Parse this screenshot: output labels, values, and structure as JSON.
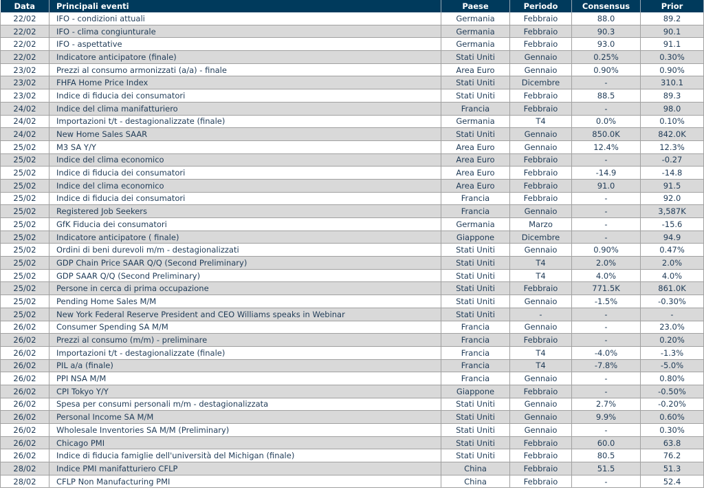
{
  "colors": {
    "header": "#003a5c",
    "alt_row": "#d9d9d9"
  },
  "headers": [
    "Data",
    "Principali eventi",
    "Paese",
    "Periodo",
    "Consensus",
    "Prior"
  ],
  "rows": [
    [
      "22/02",
      "IFO - condizioni attuali",
      "Germania",
      "Febbraio",
      "88.0",
      "89.2"
    ],
    [
      "22/02",
      "IFO - clima congiunturale",
      "Germania",
      "Febbraio",
      "90.3",
      "90.1"
    ],
    [
      "22/02",
      "IFO - aspettative",
      "Germania",
      "Febbraio",
      "93.0",
      "91.1"
    ],
    [
      "22/02",
      "Indicatore anticipatore (finale)",
      "Stati Uniti",
      "Gennaio",
      "0.25%",
      "0.30%"
    ],
    [
      "23/02",
      "Prezzi al consumo armonizzati (a/a) - finale",
      "Area Euro",
      "Gennaio",
      "0.90%",
      "0.90%"
    ],
    [
      "23/02",
      "FHFA Home Price Index",
      "Stati Uniti",
      "Dicembre",
      "-",
      "310.1"
    ],
    [
      "23/02",
      "Indice di fiducia dei consumatori",
      "Stati Uniti",
      "Febbraio",
      "88.5",
      "89.3"
    ],
    [
      "24/02",
      "Indice del clima manifatturiero",
      "Francia",
      "Febbraio",
      "-",
      "98.0"
    ],
    [
      "24/02",
      "Importazioni t/t - destagionalizzate (finale)",
      "Germania",
      "T4",
      "0.0%",
      "0.10%"
    ],
    [
      "24/02",
      "New Home Sales SAAR",
      "Stati Uniti",
      "Gennaio",
      "850.0K",
      "842.0K"
    ],
    [
      "25/02",
      "M3 SA Y/Y",
      "Area Euro",
      "Gennaio",
      "12.4%",
      "12.3%"
    ],
    [
      "25/02",
      "Indice del clima economico",
      "Area Euro",
      "Febbraio",
      "-",
      "-0.27"
    ],
    [
      "25/02",
      "Indice di fiducia dei consumatori",
      "Area Euro",
      "Febbraio",
      "-14.9",
      "-14.8"
    ],
    [
      "25/02",
      "Indice del clima economico",
      "Area Euro",
      "Febbraio",
      "91.0",
      "91.5"
    ],
    [
      "25/02",
      "Indice di fiducia dei consumatori",
      "Francia",
      "Febbraio",
      "-",
      "92.0"
    ],
    [
      "25/02",
      "Registered Job Seekers",
      "Francia",
      "Gennaio",
      "-",
      "3,587K"
    ],
    [
      "25/02",
      "GfK Fiducia dei consumatori",
      "Germania",
      "Marzo",
      "-",
      "-15.6"
    ],
    [
      "25/02",
      "Indicatore anticipatore ( finale)",
      "Giappone",
      "Dicembre",
      "-",
      "94.9"
    ],
    [
      "25/02",
      "Ordini di beni durevoli m/m - destagionalizzati",
      "Stati Uniti",
      "Gennaio",
      "0.90%",
      "0.47%"
    ],
    [
      "25/02",
      "GDP Chain Price SAAR Q/Q (Second Preliminary)",
      "Stati Uniti",
      "T4",
      "2.0%",
      "2.0%"
    ],
    [
      "25/02",
      "GDP SAAR Q/Q (Second Preliminary)",
      "Stati Uniti",
      "T4",
      "4.0%",
      "4.0%"
    ],
    [
      "25/02",
      "Persone in cerca di prima occupazione",
      "Stati Uniti",
      "Febbraio",
      "771.5K",
      "861.0K"
    ],
    [
      "25/02",
      "Pending Home Sales M/M",
      "Stati Uniti",
      "Gennaio",
      "-1.5%",
      "-0.30%"
    ],
    [
      "25/02",
      "New York Federal Reserve President and CEO Williams speaks in Webinar",
      "Stati Uniti",
      "-",
      "-",
      "-"
    ],
    [
      "26/02",
      "Consumer Spending SA M/M",
      "Francia",
      "Gennaio",
      "-",
      "23.0%"
    ],
    [
      "26/02",
      "Prezzi al consumo (m/m) - preliminare",
      "Francia",
      "Febbraio",
      "-",
      "0.20%"
    ],
    [
      "26/02",
      "Importazioni t/t - destagionalizzate (finale)",
      "Francia",
      "T4",
      "-4.0%",
      "-1.3%"
    ],
    [
      "26/02",
      "PIL a/a (finale)",
      "Francia",
      "T4",
      "-7.8%",
      "-5.0%"
    ],
    [
      "26/02",
      "PPI NSA M/M",
      "Francia",
      "Gennaio",
      "-",
      "0.80%"
    ],
    [
      "26/02",
      "CPI Tokyo Y/Y",
      "Giappone",
      "Febbraio",
      "-",
      "-0.50%"
    ],
    [
      "26/02",
      "Spesa per consumi personali m/m - destagionalizzata",
      "Stati Uniti",
      "Gennaio",
      "2.7%",
      "-0.20%"
    ],
    [
      "26/02",
      "Personal Income SA M/M",
      "Stati Uniti",
      "Gennaio",
      "9.9%",
      "0.60%"
    ],
    [
      "26/02",
      "Wholesale Inventories SA M/M (Preliminary)",
      "Stati Uniti",
      "Gennaio",
      "-",
      "0.30%"
    ],
    [
      "26/02",
      "Chicago PMI",
      "Stati Uniti",
      "Febbraio",
      "60.0",
      "63.8"
    ],
    [
      "26/02",
      "Indice di fiducia famiglie dell'università del Michigan (finale)",
      "Stati Uniti",
      "Febbraio",
      "80.5",
      "76.2"
    ],
    [
      "28/02",
      "Indice PMI manifatturiero CFLP",
      "China",
      "Febbraio",
      "51.5",
      "51.3"
    ],
    [
      "28/02",
      "CFLP Non Manufacturing PMI",
      "China",
      "Febbraio",
      "-",
      "52.4"
    ]
  ]
}
